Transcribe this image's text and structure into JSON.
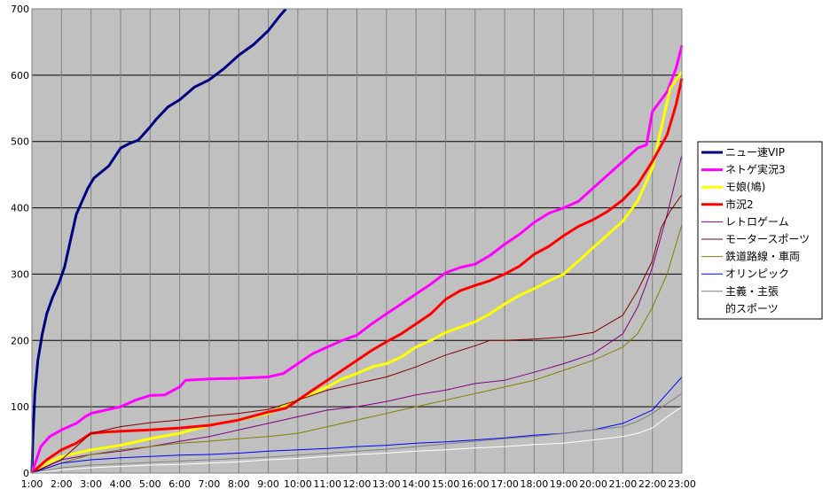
{
  "chart_data": {
    "type": "line",
    "title": "",
    "xlabel": "",
    "ylabel": "",
    "ylim": [
      0,
      700
    ],
    "y_ticks": [
      0,
      100,
      200,
      300,
      400,
      500,
      600,
      700
    ],
    "x_range": [
      1,
      23
    ],
    "x_ticks": [
      {
        "value": 1,
        "label": "1:00"
      },
      {
        "value": 2,
        "label": "2:00"
      },
      {
        "value": 3,
        "label": "3:00"
      },
      {
        "value": 4,
        "label": "4:00"
      },
      {
        "value": 5,
        "label": "5:00"
      },
      {
        "value": 6,
        "label": "6:00"
      },
      {
        "value": 7,
        "label": "7:00"
      },
      {
        "value": 8,
        "label": "8:00"
      },
      {
        "value": 9,
        "label": "9:00"
      },
      {
        "value": 10,
        "label": "10:00"
      },
      {
        "value": 11,
        "label": "11:00"
      },
      {
        "value": 12,
        "label": "12:00"
      },
      {
        "value": 13,
        "label": "13:00"
      },
      {
        "value": 14,
        "label": "14:00"
      },
      {
        "value": 15,
        "label": "15:00"
      },
      {
        "value": 16,
        "label": "16:00"
      },
      {
        "value": 17,
        "label": "17:00"
      },
      {
        "value": 18,
        "label": "18:00"
      },
      {
        "value": 19,
        "label": "19:00"
      },
      {
        "value": 20,
        "label": "20:00"
      },
      {
        "value": 21,
        "label": "21:00"
      },
      {
        "value": 22,
        "label": "22:00"
      },
      {
        "value": 23,
        "label": "23:00"
      }
    ],
    "grid": {
      "horizontal": true,
      "vertical": true
    },
    "legend_position": "right",
    "plot_background": "#c0c0c0",
    "series": [
      {
        "name": "ニュー速VIP",
        "color": "#000080",
        "width": 3,
        "x": [
          1,
          1.03,
          1.1,
          1.2,
          1.35,
          1.5,
          1.7,
          1.9,
          2.1,
          2.3,
          2.5,
          2.7,
          2.9,
          3.1,
          3.3,
          3.6,
          4,
          4.3,
          4.6,
          5,
          5.2,
          5.6,
          6,
          6.5,
          7,
          7.5,
          8,
          8.5,
          9,
          9.4,
          9.6
        ],
        "y": [
          0,
          50,
          120,
          170,
          210,
          240,
          265,
          285,
          310,
          350,
          390,
          410,
          430,
          445,
          452,
          463,
          490,
          497,
          502,
          522,
          533,
          552,
          563,
          582,
          593,
          610,
          630,
          646,
          667,
          690,
          700
        ]
      },
      {
        "name": "ネトゲ実況3",
        "color": "#ff00ff",
        "width": 3,
        "x": [
          1,
          1.3,
          1.6,
          2,
          2.5,
          2.8,
          3,
          3.5,
          4,
          4.5,
          5,
          5.5,
          6,
          6.2,
          7,
          8,
          9,
          9.5,
          10,
          10.5,
          11,
          11.5,
          12,
          12.5,
          13,
          13.5,
          14,
          14.5,
          15,
          15.5,
          16,
          16.5,
          17,
          17.5,
          18,
          18.5,
          19,
          19.5,
          20,
          20.5,
          21,
          21.5,
          21.8,
          22,
          22.5,
          22.8,
          23
        ],
        "y": [
          0,
          40,
          55,
          65,
          75,
          85,
          90,
          95,
          100,
          110,
          117,
          118,
          130,
          140,
          142,
          143,
          145,
          150,
          165,
          180,
          190,
          200,
          208,
          225,
          240,
          255,
          270,
          285,
          302,
          310,
          315,
          328,
          345,
          360,
          378,
          392,
          400,
          410,
          430,
          450,
          470,
          490,
          495,
          545,
          575,
          610,
          645
        ]
      },
      {
        "name": "モ娘(鳩)",
        "color": "#ffff00",
        "width": 3,
        "x": [
          1,
          1.5,
          2,
          3,
          4,
          5,
          6,
          7,
          8,
          9,
          9.5,
          10,
          10.5,
          11,
          11.5,
          12,
          12.5,
          13,
          13.5,
          14,
          14.5,
          15,
          15.5,
          16,
          16.5,
          17,
          17.5,
          18,
          18.5,
          19,
          19.5,
          20,
          20.5,
          21,
          21.5,
          22,
          22.2,
          22.6,
          23
        ],
        "y": [
          0,
          15,
          25,
          35,
          42,
          52,
          60,
          72,
          80,
          90,
          100,
          110,
          120,
          130,
          142,
          150,
          160,
          165,
          175,
          190,
          200,
          212,
          220,
          228,
          240,
          255,
          268,
          278,
          290,
          300,
          320,
          340,
          360,
          380,
          410,
          460,
          500,
          580,
          605
        ]
      },
      {
        "name": "市況2",
        "color": "#ff0000",
        "width": 3,
        "x": [
          1,
          1.5,
          2,
          2.5,
          3,
          3.5,
          4,
          5,
          6,
          7,
          8,
          9,
          9.6,
          10,
          10.5,
          11,
          11.5,
          12,
          12.5,
          13,
          13.5,
          14,
          14.5,
          15,
          15.5,
          16,
          16.5,
          17,
          17.5,
          18,
          18.5,
          19,
          19.5,
          20,
          20.5,
          21,
          21.5,
          22,
          22.5,
          22.8,
          23
        ],
        "y": [
          0,
          20,
          35,
          45,
          60,
          62,
          63,
          65,
          68,
          72,
          80,
          92,
          98,
          110,
          125,
          140,
          155,
          170,
          185,
          198,
          210,
          225,
          240,
          262,
          275,
          283,
          290,
          300,
          312,
          330,
          342,
          358,
          372,
          382,
          395,
          412,
          435,
          470,
          510,
          555,
          595
        ]
      },
      {
        "name": "レトロゲーム",
        "color": "#800080",
        "width": 1,
        "x": [
          1,
          2,
          3,
          4,
          5,
          6,
          7,
          8,
          9,
          10,
          11,
          12,
          13,
          14,
          15,
          16,
          17,
          18,
          19,
          20,
          21,
          21.5,
          22,
          22.5,
          23
        ],
        "y": [
          0,
          20,
          28,
          33,
          40,
          48,
          55,
          65,
          75,
          85,
          95,
          100,
          108,
          118,
          125,
          135,
          140,
          152,
          165,
          180,
          210,
          250,
          310,
          390,
          480
        ]
      },
      {
        "name": "モータースポーツ",
        "color": "#800000",
        "width": 1,
        "x": [
          1,
          2,
          2.5,
          3,
          4,
          5,
          6,
          7,
          8,
          9,
          10,
          11,
          12,
          13,
          14,
          15,
          16,
          16.5,
          17,
          18,
          19,
          20,
          21,
          21.5,
          22,
          22.3,
          22.6,
          23
        ],
        "y": [
          0,
          20,
          40,
          60,
          70,
          76,
          80,
          86,
          90,
          96,
          110,
          125,
          135,
          145,
          160,
          178,
          192,
          200,
          200,
          202,
          205,
          212,
          238,
          275,
          320,
          370,
          395,
          420
        ]
      },
      {
        "name": "鉄道路線・車両",
        "color": "#808000",
        "width": 1,
        "x": [
          1,
          2,
          3,
          4,
          5,
          6,
          7,
          8,
          9,
          10,
          11,
          12,
          13,
          14,
          15,
          16,
          17,
          18,
          19,
          20,
          21,
          21.5,
          22,
          22.5,
          23
        ],
        "y": [
          0,
          15,
          28,
          35,
          40,
          45,
          48,
          52,
          55,
          60,
          70,
          80,
          90,
          100,
          110,
          120,
          130,
          140,
          155,
          170,
          190,
          210,
          250,
          300,
          375
        ]
      },
      {
        "name": "オリンピック",
        "color": "#0000ff",
        "width": 1,
        "x": [
          1,
          2,
          3,
          4,
          5,
          6,
          7,
          8,
          9,
          10,
          11,
          12,
          13,
          14,
          15,
          16,
          17,
          18,
          19,
          20,
          21,
          21.5,
          22,
          22.5,
          23
        ],
        "y": [
          0,
          15,
          20,
          23,
          25,
          27,
          28,
          30,
          33,
          35,
          37,
          40,
          42,
          45,
          47,
          50,
          53,
          57,
          60,
          65,
          75,
          85,
          95,
          120,
          145
        ]
      },
      {
        "name": "主義・主張",
        "color": "#808080",
        "width": 1,
        "x": [
          1,
          2,
          3,
          4,
          5,
          6,
          7,
          8,
          9,
          10,
          11,
          12,
          13,
          14,
          15,
          16,
          17,
          18,
          19,
          20,
          21,
          21.5,
          22,
          22.5,
          23
        ],
        "y": [
          0,
          8,
          12,
          14,
          16,
          18,
          20,
          22,
          24,
          27,
          30,
          33,
          36,
          40,
          44,
          48,
          52,
          55,
          60,
          65,
          70,
          78,
          90,
          105,
          120
        ]
      },
      {
        "name": "的スポーツ",
        "color": "#ffffff",
        "width": 1,
        "x": [
          1,
          2,
          3,
          4,
          5,
          6,
          7,
          8,
          9,
          10,
          11,
          12,
          13,
          14,
          15,
          16,
          17,
          18,
          19,
          20,
          21,
          21.5,
          22,
          22.5,
          23
        ],
        "y": [
          0,
          5,
          8,
          10,
          12,
          13,
          15,
          17,
          20,
          22,
          25,
          28,
          30,
          33,
          35,
          38,
          40,
          43,
          45,
          50,
          55,
          60,
          68,
          85,
          100
        ]
      }
    ]
  }
}
